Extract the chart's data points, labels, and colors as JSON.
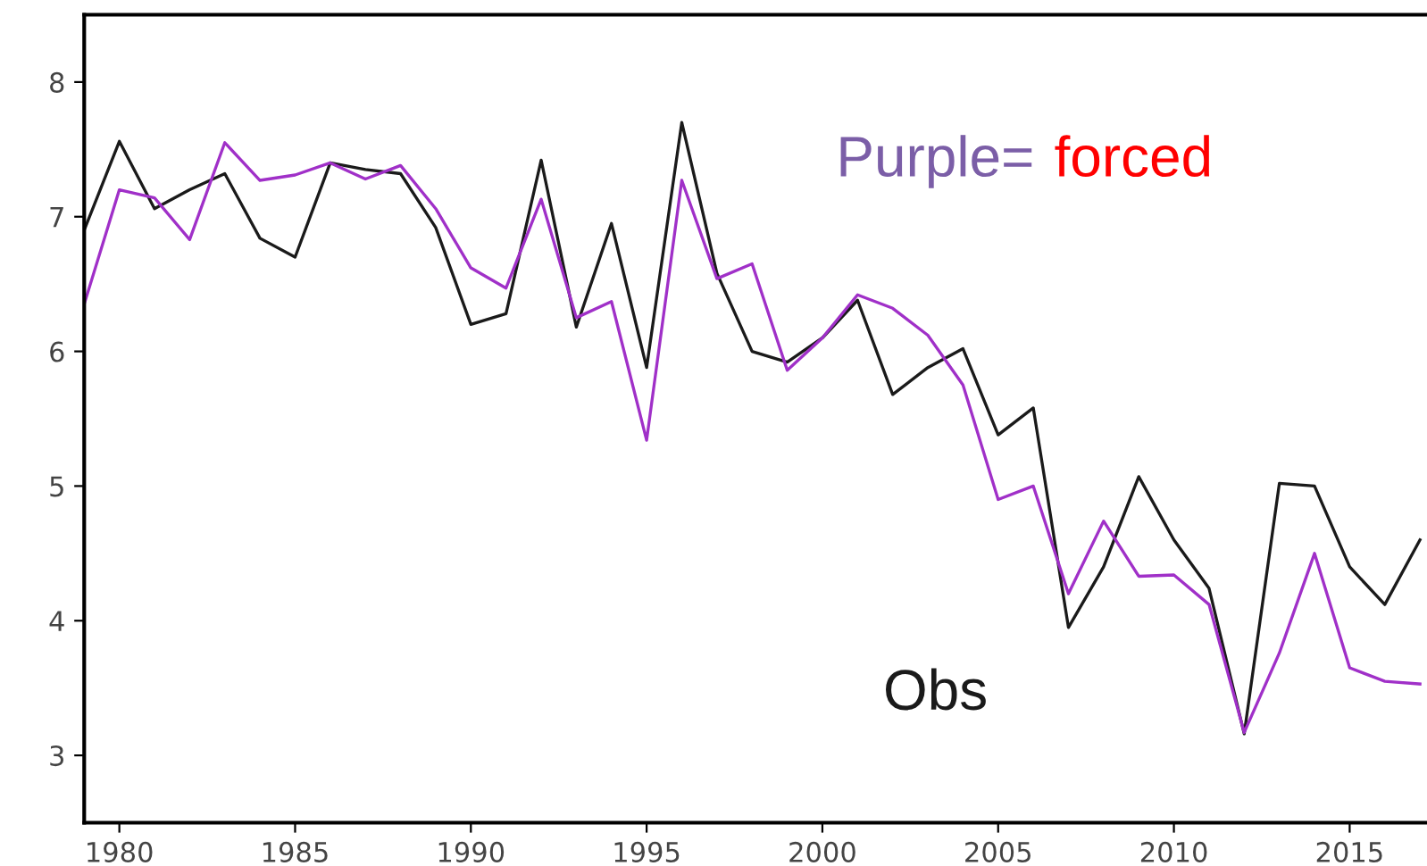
{
  "chart_data": {
    "type": "line",
    "x": [
      1979,
      1980,
      1981,
      1982,
      1983,
      1984,
      1985,
      1986,
      1987,
      1988,
      1989,
      1990,
      1991,
      1992,
      1993,
      1994,
      1995,
      1996,
      1997,
      1998,
      1999,
      2000,
      2001,
      2002,
      2003,
      2004,
      2005,
      2006,
      2007,
      2008,
      2009,
      2010,
      2011,
      2012,
      2013,
      2014,
      2015,
      2016,
      2017
    ],
    "series": [
      {
        "name": "Obs",
        "color": "#1a1a1a",
        "values": [
          6.9,
          7.56,
          7.06,
          7.2,
          7.32,
          6.84,
          6.7,
          7.4,
          7.35,
          7.32,
          6.92,
          6.2,
          6.28,
          7.42,
          6.18,
          6.95,
          5.88,
          7.7,
          6.58,
          6.0,
          5.92,
          6.1,
          6.38,
          5.68,
          5.88,
          6.02,
          5.38,
          5.58,
          3.95,
          4.4,
          5.07,
          4.6,
          4.24,
          3.16,
          5.02,
          5.0,
          4.4,
          4.12,
          4.6
        ]
      },
      {
        "color": "#a030c8",
        "values": [
          6.35,
          7.2,
          7.14,
          6.83,
          7.55,
          7.27,
          7.31,
          7.4,
          7.28,
          7.38,
          7.06,
          6.62,
          6.47,
          7.13,
          6.25,
          6.37,
          5.34,
          7.27,
          6.54,
          6.65,
          5.86,
          6.1,
          6.42,
          6.32,
          6.12,
          5.75,
          4.9,
          5.0,
          4.2,
          4.74,
          4.33,
          4.34,
          4.12,
          3.17,
          3.76,
          4.5,
          3.65,
          3.55,
          3.53
        ]
      }
    ],
    "annotations": [
      "Purple=",
      "forced"
    ],
    "xlim": [
      1979,
      2017.2
    ],
    "ylim": [
      2.5,
      8.5
    ],
    "xticks": [
      1980,
      1985,
      1990,
      1995,
      2000,
      2005,
      2010,
      2015
    ],
    "yticks": [
      3,
      4,
      5,
      6,
      7,
      8
    ],
    "grid": false,
    "legend": false
  }
}
